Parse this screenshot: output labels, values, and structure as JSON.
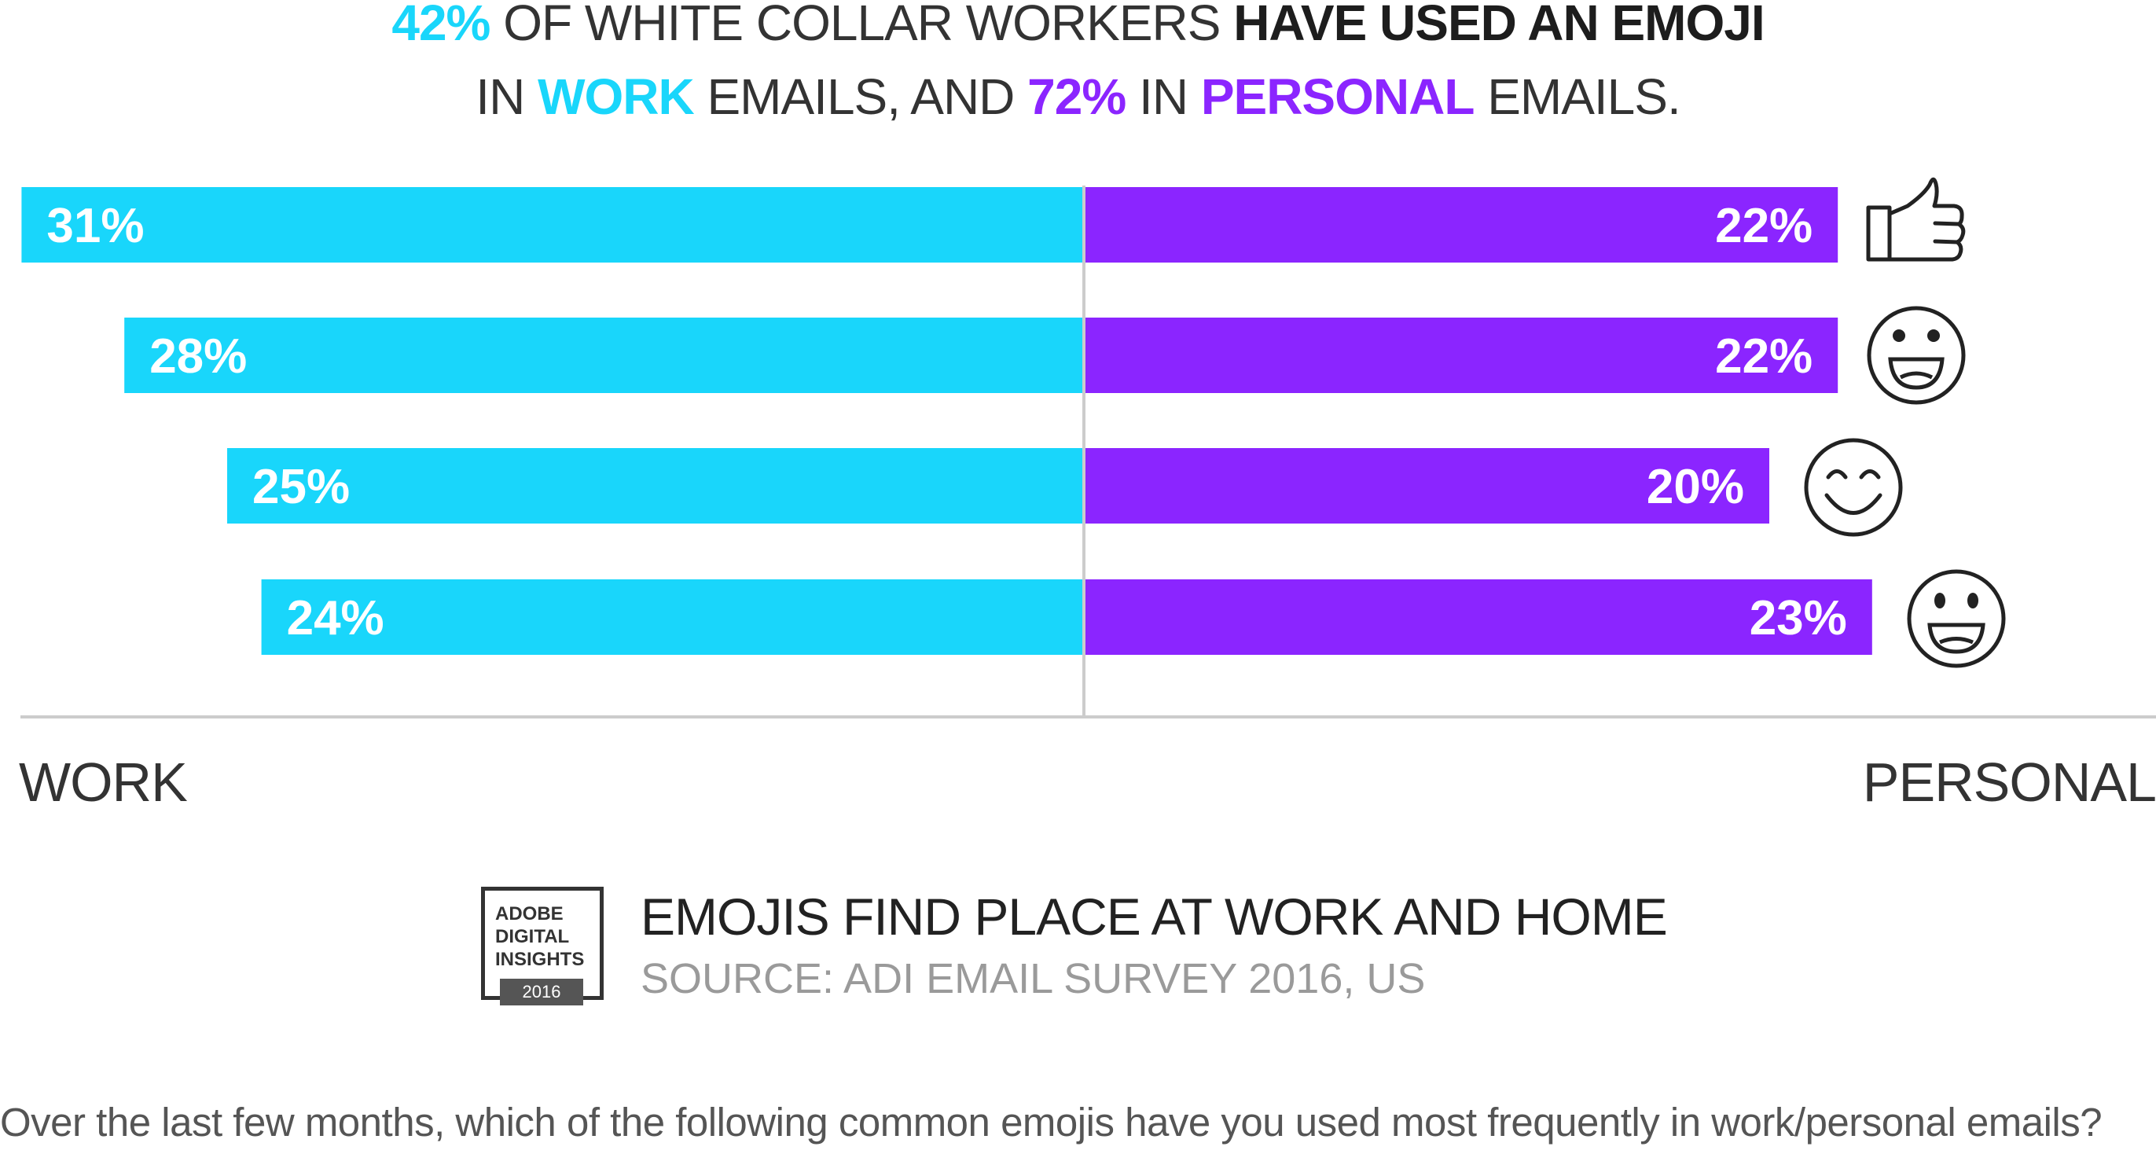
{
  "headline": {
    "line1_highlight": "42%",
    "line1_text": " OF WHITE COLLAR WORKERS ",
    "line1_bold": "HAVE USED AN EMOJI",
    "line2_prefix": "IN ",
    "line2_work": "WORK",
    "line2_mid": " EMAILS, AND ",
    "line2_pct": "72%",
    "line2_in": " IN ",
    "line2_personal": "PERSONAL",
    "line2_suffix": " EMAILS."
  },
  "colors": {
    "work": "#19d6fb",
    "personal": "#8b25ff",
    "axis": "#cccccc",
    "icon": "#222222"
  },
  "chart_data": {
    "type": "bar",
    "orientation": "diverging-horizontal",
    "categories": [
      "thumbs-up-icon",
      "grinning-face-icon",
      "smiling-closed-eyes-icon",
      "smiling-face-icon"
    ],
    "series": [
      {
        "name": "WORK",
        "values": [
          31,
          28,
          25,
          24
        ],
        "labels": [
          "31%",
          "28%",
          "25%",
          "24%"
        ]
      },
      {
        "name": "PERSONAL",
        "values": [
          22,
          22,
          20,
          23
        ],
        "labels": [
          "22%",
          "22%",
          "20%",
          "23%"
        ]
      }
    ],
    "xlabel_left": "WORK",
    "xlabel_right": "PERSONAL"
  },
  "credit": {
    "logo_line1": "ADOBE",
    "logo_line2": "DIGITAL",
    "logo_line3": "INSIGHTS",
    "logo_year": "2016",
    "title": "EMOJIS FIND PLACE AT WORK AND HOME",
    "source": "SOURCE: ADI EMAIL SURVEY 2016, US"
  },
  "question": "Over the last few months, which of the following common emojis have you used most frequently in work/personal emails?"
}
